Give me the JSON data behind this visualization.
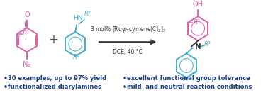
{
  "bg_color": "#ffffff",
  "pink_color": "#e060aa",
  "blue_color": "#40aece",
  "dark_color": "#333333",
  "bullet_color": "#1a3a8a",
  "bullet_texts_left": [
    "30 examples, up to 97% yield",
    "functionalized diarylamines"
  ],
  "bullet_texts_right": [
    "excellent functional group tolerance",
    "mild  and neutral reaction conditions"
  ],
  "figsize": [
    3.78,
    1.41
  ],
  "dpi": 100
}
